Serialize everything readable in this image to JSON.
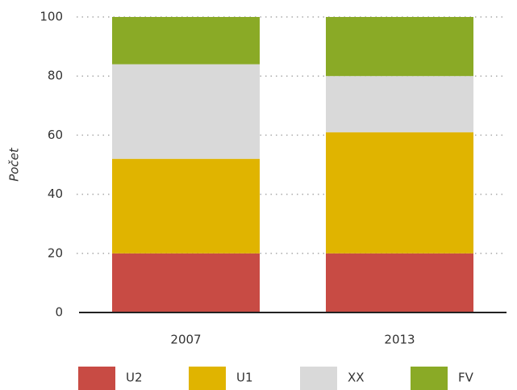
{
  "chart_data": {
    "type": "bar",
    "stacked": true,
    "categories": [
      "2007",
      "2013"
    ],
    "series": [
      {
        "name": "U2",
        "color": "#c84b44",
        "values": [
          20,
          20
        ]
      },
      {
        "name": "U1",
        "color": "#e0b400",
        "values": [
          32,
          41
        ]
      },
      {
        "name": "XX",
        "color": "#d9d9d9",
        "values": [
          32,
          19
        ]
      },
      {
        "name": "FV",
        "color": "#8aaa26",
        "values": [
          16,
          20
        ]
      }
    ],
    "ylabel": "Počet",
    "ylim": [
      0,
      100
    ],
    "yticks": [
      0,
      20,
      40,
      60,
      80,
      100
    ],
    "grid": true,
    "legend": "bottom"
  }
}
